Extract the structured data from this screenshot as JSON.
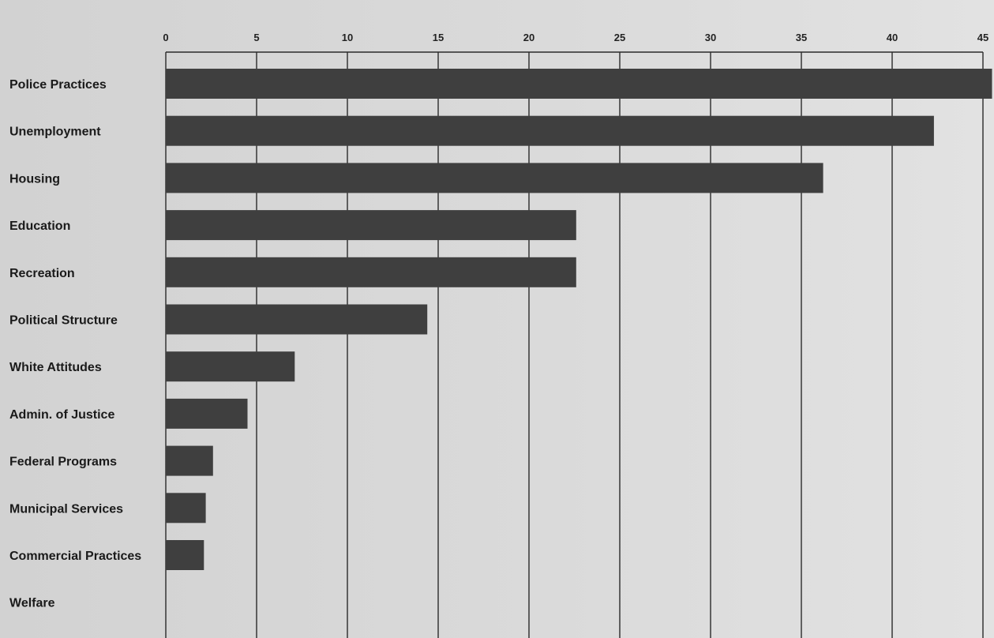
{
  "colors": {
    "bar": "#3f3f3f",
    "grid": "#2a2a2a",
    "background": "#d6d6d6"
  },
  "chart_data": {
    "type": "bar",
    "orientation": "horizontal",
    "categories": [
      "Police Practices",
      "Unemployment",
      "Housing",
      "Education",
      "Recreation",
      "Political Structure",
      "White Attitudes",
      "Admin. of Justice",
      "Federal Programs",
      "Municipal Services",
      "Commercial Practices",
      "Welfare"
    ],
    "values": [
      45.5,
      42.3,
      36.2,
      22.6,
      22.6,
      14.4,
      7.1,
      4.5,
      2.6,
      2.2,
      2.1,
      0
    ],
    "xlim": [
      0,
      45
    ],
    "xticks": [
      "0",
      "5",
      "10",
      "15",
      "20",
      "25",
      "30",
      "35",
      "40",
      "45"
    ],
    "tick_values": [
      0,
      5,
      10,
      15,
      20,
      25,
      30,
      35,
      40,
      45
    ],
    "grid": "vertical",
    "title": "",
    "xlabel": "",
    "ylabel": ""
  }
}
